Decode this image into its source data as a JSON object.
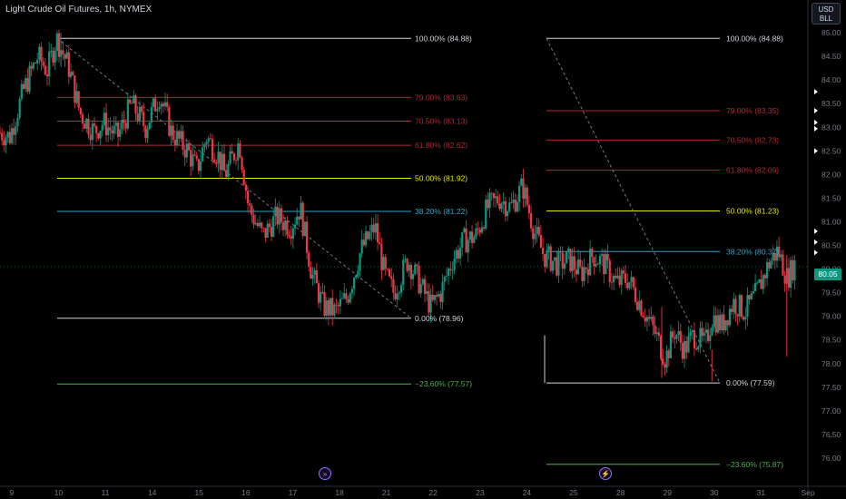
{
  "header": {
    "title": "Light Crude Oil Futures, 1h, NYMEX",
    "unit_line1": "USD",
    "unit_line2": "BLL"
  },
  "price_axis": {
    "last_price": "80.05",
    "last_price_color": "#089981"
  },
  "events": {
    "event1_icon": "double-chevron-icon",
    "event1_glyph": "»",
    "event2_icon": "lightning-icon",
    "event2_glyph": "⚡"
  },
  "colors": {
    "up": "#089981",
    "down": "#f23645",
    "fib_100": "#d1d4dc",
    "fib_79": "#b22833",
    "fib_618": "#b22833",
    "fib_50": "#e6e600",
    "fib_382": "#2ea6c9",
    "fib_0": "#d1d4dc",
    "fib_neg": "#4caf50"
  },
  "chart_data": {
    "type": "candlestick",
    "title": "Light Crude Oil Futures, 1h, NYMEX",
    "ylim": [
      75.35,
      85.6
    ],
    "y_ticks": [
      "76.00",
      "76.50",
      "77.00",
      "77.50",
      "78.00",
      "78.50",
      "79.00",
      "79.50",
      "80.00",
      "80.50",
      "81.00",
      "81.50",
      "82.00",
      "82.50",
      "83.00",
      "83.50",
      "84.00",
      "84.50",
      "85.00",
      "85.50"
    ],
    "x_ticks": [
      {
        "label": "9",
        "pos": 9
      },
      {
        "label": "10",
        "pos": 10
      },
      {
        "label": "11",
        "pos": 11
      },
      {
        "label": "14",
        "pos": 12
      },
      {
        "label": "15",
        "pos": 13
      },
      {
        "label": "16",
        "pos": 14
      },
      {
        "label": "17",
        "pos": 15
      },
      {
        "label": "18",
        "pos": 16
      },
      {
        "label": "21",
        "pos": 17
      },
      {
        "label": "22",
        "pos": 18
      },
      {
        "label": "23",
        "pos": 19
      },
      {
        "label": "24",
        "pos": 20
      },
      {
        "label": "25",
        "pos": 21
      },
      {
        "label": "28",
        "pos": 22
      },
      {
        "label": "29",
        "pos": 23
      },
      {
        "label": "30",
        "pos": 24
      },
      {
        "label": "31",
        "pos": 25
      },
      {
        "label": "Sep",
        "pos": 26
      }
    ],
    "price_path": [
      [
        8.75,
        82.9
      ],
      [
        9.0,
        82.8
      ],
      [
        9.3,
        83.8
      ],
      [
        9.6,
        84.5
      ],
      [
        9.8,
        84.2
      ],
      [
        10.0,
        84.88
      ],
      [
        10.25,
        84.3
      ],
      [
        10.5,
        83.3
      ],
      [
        10.8,
        82.9
      ],
      [
        11.0,
        83.1
      ],
      [
        11.3,
        82.8
      ],
      [
        11.6,
        83.5
      ],
      [
        11.9,
        83.0
      ],
      [
        12.2,
        83.7
      ],
      [
        12.45,
        82.9
      ],
      [
        12.8,
        82.5
      ],
      [
        13.0,
        82.1
      ],
      [
        13.2,
        82.8
      ],
      [
        13.45,
        82.4
      ],
      [
        13.6,
        82.0
      ],
      [
        13.9,
        82.7
      ],
      [
        14.1,
        81.3
      ],
      [
        14.4,
        80.7
      ],
      [
        14.7,
        81.1
      ],
      [
        15.0,
        80.9
      ],
      [
        15.2,
        81.3
      ],
      [
        15.45,
        79.9
      ],
      [
        15.7,
        79.2
      ],
      [
        15.95,
        79.1
      ],
      [
        16.2,
        79.4
      ],
      [
        16.5,
        80.4
      ],
      [
        16.8,
        80.9
      ],
      [
        17.0,
        79.9
      ],
      [
        17.2,
        79.5
      ],
      [
        17.5,
        80.2
      ],
      [
        17.8,
        79.6
      ],
      [
        18.0,
        79.2
      ],
      [
        18.2,
        79.5
      ],
      [
        18.45,
        80.2
      ],
      [
        18.7,
        80.6
      ],
      [
        18.95,
        80.7
      ],
      [
        19.2,
        81.3
      ],
      [
        19.45,
        81.5
      ],
      [
        19.7,
        81.3
      ],
      [
        19.95,
        81.76
      ],
      [
        20.2,
        80.8
      ],
      [
        20.4,
        80.3
      ],
      [
        20.7,
        80.1
      ],
      [
        20.95,
        80.2
      ],
      [
        21.2,
        79.9
      ],
      [
        21.45,
        80.3
      ],
      [
        21.7,
        80.1
      ],
      [
        21.95,
        79.7
      ],
      [
        22.2,
        79.8
      ],
      [
        22.4,
        79.4
      ],
      [
        22.6,
        79.0
      ],
      [
        22.8,
        78.6
      ],
      [
        23.0,
        78.1
      ],
      [
        23.2,
        78.7
      ],
      [
        23.4,
        78.3
      ],
      [
        23.6,
        78.6
      ],
      [
        23.85,
        78.4
      ],
      [
        24.0,
        79.0
      ],
      [
        24.2,
        78.8
      ],
      [
        24.45,
        79.3
      ],
      [
        24.7,
        79.1
      ],
      [
        24.95,
        79.5
      ],
      [
        25.2,
        80.1
      ],
      [
        25.4,
        80.4
      ],
      [
        25.6,
        79.8
      ],
      [
        25.75,
        80.1
      ]
    ],
    "fib_left": {
      "anchor_high": 84.88,
      "anchor_low": 78.96,
      "levels": [
        {
          "ratio": "100.00%",
          "price": 84.88,
          "label": "100.00% (84.88)",
          "color": "#d1d4dc"
        },
        {
          "ratio": "79.00%",
          "price": 83.63,
          "label": "79.00% (83.63)",
          "color": "#b22833"
        },
        {
          "ratio": "70.50%",
          "price": 83.13,
          "label": "70.50% (83.13)",
          "color": "#b22833"
        },
        {
          "ratio": "61.80%",
          "price": 82.62,
          "label": "61.80% (82.62)",
          "color": "#b22833"
        },
        {
          "ratio": "50.00%",
          "price": 81.92,
          "label": "50.00% (81.92)",
          "color": "#e6e600"
        },
        {
          "ratio": "38.20%",
          "price": 81.22,
          "label": "38.20% (81.22)",
          "color": "#2ea6c9"
        },
        {
          "ratio": "0.00%",
          "price": 78.96,
          "label": "0.00% (78.96)",
          "color": "#d1d4dc"
        },
        {
          "ratio": "-23.60%",
          "price": 77.57,
          "label": "−23.60% (77.57)",
          "color": "#4caf50"
        }
      ]
    },
    "fib_right": {
      "anchor_high": 84.88,
      "anchor_low": 77.59,
      "levels": [
        {
          "ratio": "100.00%",
          "price": 84.88,
          "label": "100.00% (84.88)",
          "color": "#d1d4dc"
        },
        {
          "ratio": "79.00%",
          "price": 83.35,
          "label": "79.00% (83.35)",
          "color": "#b22833"
        },
        {
          "ratio": "70.50%",
          "price": 82.73,
          "label": "70.50% (82.73)",
          "color": "#b22833"
        },
        {
          "ratio": "61.80%",
          "price": 82.09,
          "label": "61.80% (82.09)",
          "color": "#b22833"
        },
        {
          "ratio": "50.00%",
          "price": 81.23,
          "label": "50.00% (81.23)",
          "color": "#e6e600"
        },
        {
          "ratio": "38.20%",
          "price": 80.37,
          "label": "38.20% (80.37)",
          "color": "#2ea6c9"
        },
        {
          "ratio": "0.00%",
          "price": 77.59,
          "label": "0.00% (77.59)",
          "color": "#d1d4dc"
        },
        {
          "ratio": "-23.60%",
          "price": 75.87,
          "label": "−23.60% (75.87)",
          "color": "#4caf50"
        }
      ]
    },
    "last_price": 80.05,
    "grid": false,
    "legend": "none"
  }
}
